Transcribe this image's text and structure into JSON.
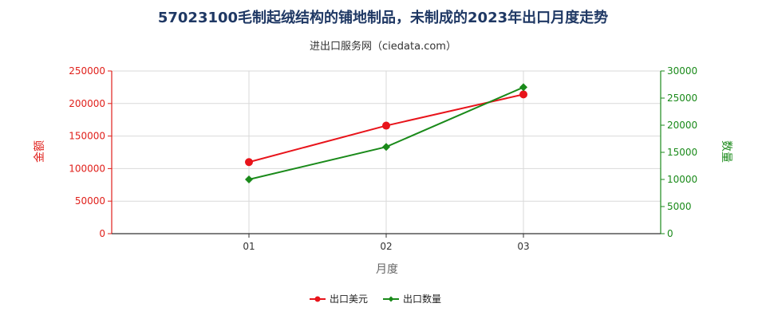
{
  "chart_data": {
    "type": "line",
    "title": "57023100毛制起绒结构的铺地制品，未制成的2023年出口月度走势",
    "subtitle": "进出口服务网（ciedata.com）",
    "xlabel": "月度",
    "ylabel_left": "金额",
    "ylabel_right": "数量",
    "categories": [
      "01",
      "02",
      "03"
    ],
    "ylim_left": [
      0,
      250000
    ],
    "yticks_left": [
      "0",
      "50000",
      "100000",
      "150000",
      "200000",
      "250000"
    ],
    "ylim_right": [
      0,
      30000
    ],
    "yticks_right": [
      "0",
      "5000",
      "10000",
      "15000",
      "20000",
      "25000",
      "30000"
    ],
    "grid": true,
    "legend_position": "bottom",
    "series": [
      {
        "name": "出口美元",
        "axis": "left",
        "color": "#e8141b",
        "marker": "circle",
        "values": [
          110000,
          166000,
          214000
        ]
      },
      {
        "name": "出口数量",
        "axis": "right",
        "color": "#1a8a1a",
        "marker": "diamond",
        "values": [
          10000,
          16000,
          27000
        ]
      }
    ]
  }
}
